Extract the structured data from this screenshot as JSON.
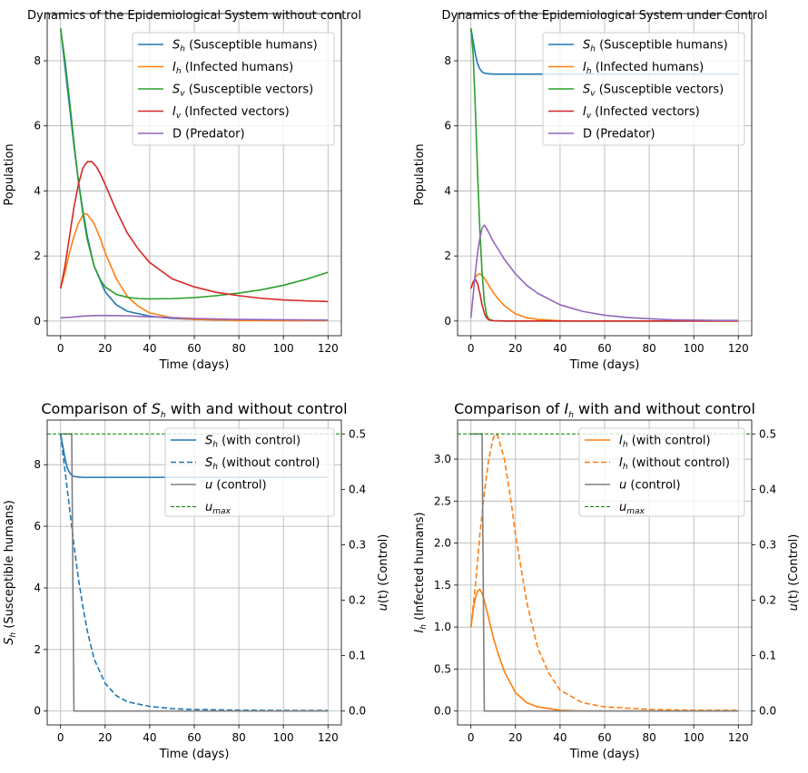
{
  "chart_data": [
    {
      "type": "line",
      "title": "Dynamics of the Epidemiological System without control",
      "xlabel": "Time (days)",
      "ylabel": "Population",
      "xlim": [
        -6,
        126
      ],
      "ylim": [
        -0.45,
        9.45
      ],
      "xticks": [
        0,
        20,
        40,
        60,
        80,
        100,
        120
      ],
      "yticks": [
        0,
        2,
        4,
        6,
        8
      ],
      "grid": true,
      "legend": "top-right",
      "series": [
        {
          "name": "Sh",
          "label": "(Susceptible humans)",
          "color": "#1f77b4",
          "x": [
            0,
            2,
            4,
            6,
            8,
            10,
            12,
            15,
            20,
            25,
            30,
            40,
            50,
            60,
            80,
            100,
            120
          ],
          "y": [
            9.0,
            7.8,
            6.6,
            5.4,
            4.3,
            3.4,
            2.6,
            1.7,
            0.9,
            0.5,
            0.3,
            0.15,
            0.08,
            0.05,
            0.03,
            0.02,
            0.02
          ]
        },
        {
          "name": "Ih",
          "label": "(Infected humans)",
          "color": "#ff7f0e",
          "x": [
            0,
            2,
            4,
            6,
            8,
            10,
            11,
            12,
            15,
            18,
            20,
            25,
            30,
            35,
            40,
            50,
            60,
            80,
            100,
            120
          ],
          "y": [
            1.0,
            1.5,
            2.1,
            2.6,
            3.0,
            3.25,
            3.3,
            3.28,
            3.0,
            2.5,
            2.1,
            1.3,
            0.75,
            0.45,
            0.25,
            0.1,
            0.05,
            0.02,
            0.01,
            0.01
          ]
        },
        {
          "name": "Sv",
          "label": "(Susceptible vectors)",
          "color": "#2ca02c",
          "x": [
            0,
            2,
            4,
            6,
            8,
            10,
            12,
            15,
            18,
            20,
            25,
            30,
            35,
            40,
            50,
            60,
            70,
            80,
            90,
            100,
            110,
            120
          ],
          "y": [
            9.0,
            8.0,
            6.8,
            5.5,
            4.3,
            3.3,
            2.5,
            1.7,
            1.25,
            1.05,
            0.82,
            0.73,
            0.69,
            0.68,
            0.69,
            0.72,
            0.78,
            0.86,
            0.96,
            1.1,
            1.28,
            1.5
          ]
        },
        {
          "name": "Iv",
          "label": "(Infected vectors)",
          "color": "#d62728",
          "x": [
            0,
            2,
            4,
            6,
            8,
            10,
            12,
            14,
            16,
            18,
            20,
            25,
            30,
            35,
            40,
            50,
            60,
            70,
            80,
            90,
            100,
            110,
            120
          ],
          "y": [
            1.0,
            1.7,
            2.6,
            3.5,
            4.2,
            4.7,
            4.9,
            4.9,
            4.75,
            4.5,
            4.2,
            3.4,
            2.7,
            2.2,
            1.8,
            1.3,
            1.05,
            0.88,
            0.78,
            0.7,
            0.65,
            0.62,
            0.6
          ]
        },
        {
          "name": "D",
          "label": "D (Predator)",
          "color": "#9467bd",
          "x": [
            0,
            5,
            10,
            15,
            20,
            25,
            30,
            40,
            60,
            80,
            100,
            120
          ],
          "y": [
            0.1,
            0.12,
            0.15,
            0.17,
            0.17,
            0.17,
            0.16,
            0.13,
            0.08,
            0.05,
            0.04,
            0.03
          ]
        }
      ]
    },
    {
      "type": "line",
      "title": "Dynamics of the Epidemiological System under Control",
      "xlabel": "Time (days)",
      "ylabel": "Population",
      "xlim": [
        -6,
        126
      ],
      "ylim": [
        -0.45,
        9.45
      ],
      "xticks": [
        0,
        20,
        40,
        60,
        80,
        100,
        120
      ],
      "yticks": [
        0,
        2,
        4,
        6,
        8
      ],
      "grid": true,
      "legend": "top-right",
      "series": [
        {
          "name": "Sh",
          "label": "(Susceptible humans)",
          "color": "#1f77b4",
          "x": [
            0,
            1,
            2,
            3,
            4,
            5,
            6,
            8,
            10,
            15,
            20,
            40,
            60,
            80,
            100,
            120
          ],
          "y": [
            9.0,
            8.6,
            8.2,
            7.9,
            7.75,
            7.66,
            7.62,
            7.6,
            7.59,
            7.59,
            7.59,
            7.59,
            7.59,
            7.59,
            7.59,
            7.59
          ]
        },
        {
          "name": "Ih",
          "label": "(Infected humans)",
          "color": "#ff7f0e",
          "x": [
            0,
            1,
            2,
            3,
            4,
            5,
            6,
            8,
            10,
            12,
            15,
            20,
            25,
            30,
            40,
            50,
            60,
            80,
            100,
            120
          ],
          "y": [
            1.0,
            1.2,
            1.35,
            1.43,
            1.45,
            1.4,
            1.32,
            1.1,
            0.88,
            0.7,
            0.47,
            0.22,
            0.1,
            0.05,
            0.01,
            0.0,
            0.0,
            0.0,
            0.0,
            0.0
          ]
        },
        {
          "name": "Sv",
          "label": "(Susceptible vectors)",
          "color": "#2ca02c",
          "x": [
            0,
            1,
            2,
            3,
            4,
            5,
            6,
            7,
            8,
            10,
            15,
            20,
            40,
            60,
            80,
            100,
            120
          ],
          "y": [
            9.0,
            8.2,
            6.5,
            4.5,
            2.8,
            1.5,
            0.6,
            0.2,
            0.06,
            0.01,
            0.0,
            0.0,
            0.0,
            0.0,
            0.0,
            0.0,
            0.0
          ]
        },
        {
          "name": "Iv",
          "label": "(Infected vectors)",
          "color": "#d62728",
          "x": [
            0,
            1,
            2,
            3,
            4,
            5,
            6,
            7,
            8,
            10,
            15,
            20,
            40,
            60,
            80,
            100,
            120
          ],
          "y": [
            1.0,
            1.2,
            1.28,
            1.15,
            0.85,
            0.5,
            0.25,
            0.1,
            0.04,
            0.01,
            0.0,
            0.0,
            0.0,
            0.0,
            0.0,
            0.0,
            0.0
          ]
        },
        {
          "name": "D",
          "label": "D (Predator)",
          "color": "#9467bd",
          "x": [
            0,
            1,
            2,
            3,
            4,
            5,
            6,
            7,
            10,
            15,
            20,
            25,
            30,
            40,
            50,
            60,
            70,
            80,
            90,
            100,
            110,
            120
          ],
          "y": [
            0.1,
            0.8,
            1.5,
            2.1,
            2.55,
            2.85,
            2.95,
            2.85,
            2.45,
            1.9,
            1.45,
            1.1,
            0.85,
            0.5,
            0.3,
            0.18,
            0.11,
            0.07,
            0.04,
            0.03,
            0.02,
            0.02
          ]
        }
      ]
    },
    {
      "type": "line",
      "title_prefix": "Comparison of",
      "title_var": "S",
      "title_sub": "h",
      "title_suffix": "with and without control",
      "xlabel": "Time (days)",
      "ylabel_var": "S",
      "ylabel_sub": "h",
      "ylabel_rest": "(Susceptible humans)",
      "y2label_prefix": "u",
      "y2label_rest": "(t) (Control)",
      "xlim": [
        -6,
        126
      ],
      "ylim": [
        -0.45,
        9.45
      ],
      "y2lim": [
        -0.025,
        0.525
      ],
      "xticks": [
        0,
        20,
        40,
        60,
        80,
        100,
        120
      ],
      "yticks": [
        0,
        2,
        4,
        6,
        8
      ],
      "y2ticks": [
        0.0,
        0.1,
        0.2,
        0.3,
        0.4,
        0.5
      ],
      "grid": true,
      "legend": "top-right",
      "series": [
        {
          "name": "Sh",
          "label": "(with control)",
          "color": "#1f77b4",
          "dash": "solid",
          "axis": "left",
          "x": [
            0,
            1,
            2,
            3,
            4,
            5,
            6,
            8,
            10,
            15,
            20,
            40,
            60,
            80,
            100,
            120
          ],
          "y": [
            9.0,
            8.6,
            8.2,
            7.9,
            7.75,
            7.66,
            7.62,
            7.6,
            7.59,
            7.59,
            7.59,
            7.59,
            7.59,
            7.59,
            7.59,
            7.59
          ]
        },
        {
          "name": "Sh",
          "label": "(without control)",
          "color": "#1f77b4",
          "dash": "dashed",
          "axis": "left",
          "x": [
            0,
            2,
            4,
            6,
            8,
            10,
            12,
            15,
            20,
            25,
            30,
            40,
            50,
            60,
            80,
            100,
            120
          ],
          "y": [
            9.0,
            7.8,
            6.6,
            5.4,
            4.3,
            3.4,
            2.6,
            1.7,
            0.9,
            0.5,
            0.3,
            0.15,
            0.08,
            0.05,
            0.03,
            0.02,
            0.02
          ]
        },
        {
          "name": "u",
          "label": "(control)",
          "color": "#808080",
          "dash": "solid",
          "axis": "right",
          "x": [
            0,
            5,
            6,
            120
          ],
          "y": [
            0.5,
            0.5,
            0.0,
            0.0
          ]
        },
        {
          "name": "u",
          "sub": "max",
          "label": "",
          "color": "#008000",
          "dash": "dashed-fine",
          "axis": "right",
          "x": [
            -6,
            126
          ],
          "y": [
            0.5,
            0.5
          ]
        }
      ]
    },
    {
      "type": "line",
      "title_prefix": "Comparison of",
      "title_var": "I",
      "title_sub": "h",
      "title_suffix": "with and without control",
      "xlabel": "Time (days)",
      "ylabel_var": "I",
      "ylabel_sub": "h",
      "ylabel_rest": "(Infected humans)",
      "y2label_prefix": "u",
      "y2label_rest": "(t) (Control)",
      "xlim": [
        -6,
        126
      ],
      "ylim": [
        -0.165,
        3.465
      ],
      "y2lim": [
        -0.025,
        0.525
      ],
      "xticks": [
        0,
        20,
        40,
        60,
        80,
        100,
        120
      ],
      "yticks": [
        0.0,
        0.5,
        1.0,
        1.5,
        2.0,
        2.5,
        3.0
      ],
      "y2ticks": [
        0.0,
        0.1,
        0.2,
        0.3,
        0.4,
        0.5
      ],
      "grid": true,
      "legend": "top-right",
      "series": [
        {
          "name": "Ih",
          "label": "(with control)",
          "color": "#ff7f0e",
          "dash": "solid",
          "axis": "left",
          "x": [
            0,
            1,
            2,
            3,
            4,
            5,
            6,
            8,
            10,
            12,
            15,
            20,
            25,
            30,
            40,
            50,
            60,
            80,
            100,
            120
          ],
          "y": [
            1.0,
            1.2,
            1.35,
            1.43,
            1.45,
            1.4,
            1.32,
            1.1,
            0.88,
            0.7,
            0.47,
            0.22,
            0.1,
            0.05,
            0.01,
            0.0,
            0.0,
            0.0,
            0.0,
            0.0
          ]
        },
        {
          "name": "Ih",
          "label": "(without control)",
          "color": "#ff7f0e",
          "dash": "dashed",
          "axis": "left",
          "x": [
            0,
            2,
            4,
            6,
            8,
            10,
            11,
            12,
            15,
            18,
            20,
            25,
            30,
            35,
            40,
            50,
            60,
            80,
            100,
            120
          ],
          "y": [
            1.0,
            1.5,
            2.1,
            2.6,
            3.0,
            3.25,
            3.3,
            3.28,
            3.0,
            2.5,
            2.1,
            1.3,
            0.75,
            0.45,
            0.25,
            0.1,
            0.05,
            0.02,
            0.01,
            0.01
          ]
        },
        {
          "name": "u",
          "label": "(control)",
          "color": "#808080",
          "dash": "solid",
          "axis": "right",
          "x": [
            0,
            5,
            6,
            120
          ],
          "y": [
            0.5,
            0.5,
            0.0,
            0.0
          ]
        },
        {
          "name": "u",
          "sub": "max",
          "label": "",
          "color": "#008000",
          "dash": "dashed-fine",
          "axis": "right",
          "x": [
            -6,
            126
          ],
          "y": [
            0.5,
            0.5
          ]
        }
      ]
    }
  ]
}
